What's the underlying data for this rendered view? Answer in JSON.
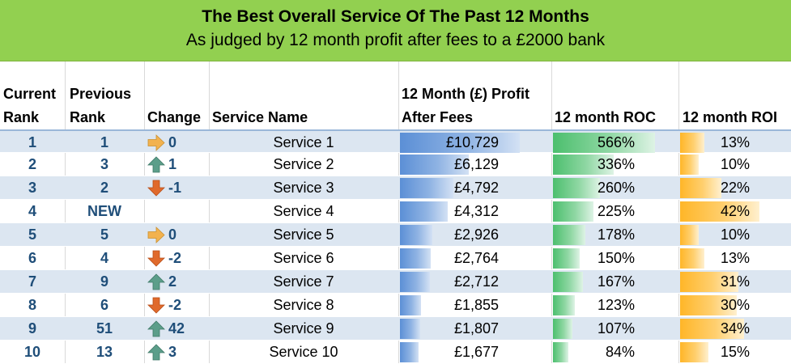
{
  "banner": {
    "title": "The Best Overall Service Of The Past 12 Months",
    "subtitle": "As judged by 12 month profit after fees to a £2000 bank",
    "color": "#92d050"
  },
  "headers": {
    "current_rank_1": "Current",
    "current_rank_2": "Rank",
    "previous_rank_1": "Previous",
    "previous_rank_2": "Rank",
    "change": "Change",
    "service_name": "Service Name",
    "profit_1": "12 Month (£) Profit",
    "profit_2": "After Fees",
    "roc": "12 month ROC",
    "roi": "12 month ROI"
  },
  "colors": {
    "rank_text": "#1f4e79",
    "alt_row": "#dce6f1",
    "up_arrow": "#5c9e8a",
    "down_arrow": "#e06a2c",
    "side_arrow": "#f2b24f"
  },
  "rows": [
    {
      "current": "1",
      "previous": "1",
      "change_dir": "side",
      "change": "0",
      "name": "Service 1",
      "profit": "£10,729",
      "profit_frac": 1.0,
      "roc": "566%",
      "roc_frac": 1.0,
      "roi": "13%",
      "roi_frac": 0.31
    },
    {
      "current": "2",
      "previous": "3",
      "change_dir": "up",
      "change": "1",
      "name": "Service 2",
      "profit": "£6,129",
      "profit_frac": 0.571,
      "roc": "336%",
      "roc_frac": 0.594,
      "roi": "10%",
      "roi_frac": 0.238
    },
    {
      "current": "3",
      "previous": "2",
      "change_dir": "down",
      "change": "-1",
      "name": "Service 3",
      "profit": "£4,792",
      "profit_frac": 0.447,
      "roc": "260%",
      "roc_frac": 0.459,
      "roi": "22%",
      "roi_frac": 0.524
    },
    {
      "current": "4",
      "previous": "NEW",
      "change_dir": "none",
      "change": "",
      "name": "Service 4",
      "profit": "£4,312",
      "profit_frac": 0.402,
      "roc": "225%",
      "roc_frac": 0.398,
      "roi": "42%",
      "roi_frac": 1.0
    },
    {
      "current": "5",
      "previous": "5",
      "change_dir": "side",
      "change": "0",
      "name": "Service 5",
      "profit": "£2,926",
      "profit_frac": 0.273,
      "roc": "178%",
      "roc_frac": 0.314,
      "roi": "10%",
      "roi_frac": 0.238
    },
    {
      "current": "6",
      "previous": "4",
      "change_dir": "down",
      "change": "-2",
      "name": "Service 6",
      "profit": "£2,764",
      "profit_frac": 0.258,
      "roc": "150%",
      "roc_frac": 0.265,
      "roi": "13%",
      "roi_frac": 0.31
    },
    {
      "current": "7",
      "previous": "9",
      "change_dir": "up",
      "change": "2",
      "name": "Service 7",
      "profit": "£2,712",
      "profit_frac": 0.253,
      "roc": "167%",
      "roc_frac": 0.295,
      "roi": "31%",
      "roi_frac": 0.738
    },
    {
      "current": "8",
      "previous": "6",
      "change_dir": "down",
      "change": "-2",
      "name": "Service 8",
      "profit": "£1,855",
      "profit_frac": 0.173,
      "roc": "123%",
      "roc_frac": 0.217,
      "roi": "30%",
      "roi_frac": 0.714
    },
    {
      "current": "9",
      "previous": "51",
      "change_dir": "up",
      "change": "42",
      "name": "Service 9",
      "profit": "£1,807",
      "profit_frac": 0.168,
      "roc": "107%",
      "roc_frac": 0.189,
      "roi": "34%",
      "roi_frac": 0.81
    },
    {
      "current": "10",
      "previous": "13",
      "change_dir": "up",
      "change": "3",
      "name": "Service 10",
      "profit": "£1,677",
      "profit_frac": 0.156,
      "roc": "84%",
      "roc_frac": 0.148,
      "roi": "15%",
      "roi_frac": 0.357
    }
  ]
}
